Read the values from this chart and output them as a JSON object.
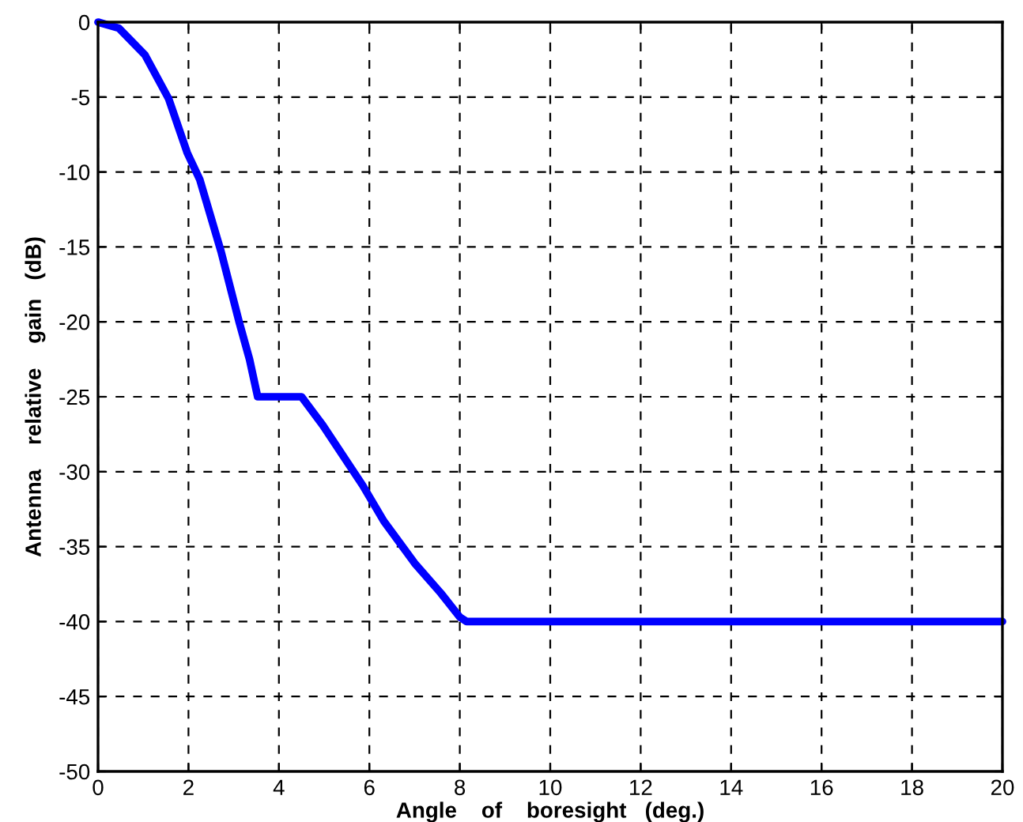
{
  "chart_data": {
    "type": "line",
    "xlabel": "Angle    of    boresight   (deg.)",
    "ylabel": "Antenna    relative    gain   (dB)",
    "series": [
      {
        "color": "#0000ff",
        "x": [
          0,
          0.46,
          1.04,
          1.56,
          1.97,
          2.25,
          2.72,
          3.12,
          3.35,
          3.53,
          4.5,
          4.97,
          5.85,
          6.32,
          7.0,
          7.58,
          8.0,
          8.15,
          20
        ],
        "values": [
          0,
          -0.4,
          -2.2,
          -5.1,
          -8.7,
          -10.5,
          -15.3,
          -20,
          -22.5,
          -25,
          -25,
          -26.9,
          -30.9,
          -33.3,
          -36.1,
          -38.1,
          -39.7,
          -40,
          -40
        ]
      }
    ],
    "xlim": [
      0,
      20
    ],
    "ylim": [
      -50,
      0
    ],
    "xticks": [
      0,
      2,
      4,
      6,
      8,
      10,
      12,
      14,
      16,
      18,
      20
    ],
    "yticks": [
      -50,
      -45,
      -40,
      -35,
      -30,
      -25,
      -20,
      -15,
      -10,
      -5,
      0
    ],
    "grid": true,
    "line_style": "solid",
    "marker": "none"
  }
}
